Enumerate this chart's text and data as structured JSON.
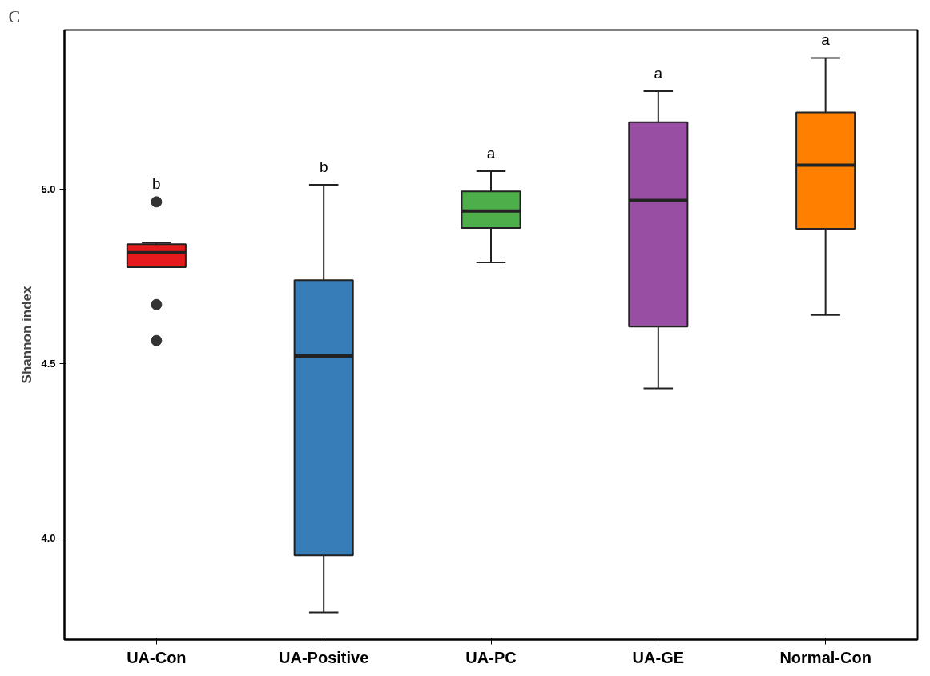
{
  "chart_data": {
    "type": "box",
    "ylabel": "Shannon index",
    "categories": [
      "UA-Con",
      "UA-Positive",
      "UA-PC",
      "UA-GE",
      "Normal-Con"
    ],
    "colors": [
      "#e41a1c",
      "#377eb8",
      "#4daf4a",
      "#984ea3",
      "#ff7f00"
    ],
    "boxes": [
      {
        "low": 4.776,
        "q1": 4.776,
        "median": 4.818,
        "q3": 4.842,
        "high": 4.846,
        "outliers": [
          4.963,
          4.669,
          4.566
        ]
      },
      {
        "low": 3.788,
        "q1": 3.951,
        "median": 4.522,
        "q3": 4.739,
        "high": 5.012
      },
      {
        "low": 4.79,
        "q1": 4.888,
        "median": 4.937,
        "q3": 4.993,
        "high": 5.051
      },
      {
        "low": 4.429,
        "q1": 4.606,
        "median": 4.967,
        "q3": 5.191,
        "high": 5.28
      },
      {
        "low": 4.639,
        "q1": 4.886,
        "median": 5.068,
        "q3": 5.219,
        "high": 5.375
      }
    ],
    "ylim": [
      3.71,
      5.455
    ],
    "yticks": [
      {
        "value": 4.0,
        "label": "4.0"
      },
      {
        "value": 4.5,
        "label": "4.5"
      },
      {
        "value": 5.0,
        "label": "5.0"
      }
    ],
    "grid": false,
    "annotations": [
      "C",
      "b",
      "b",
      "a",
      "a",
      "a"
    ]
  }
}
